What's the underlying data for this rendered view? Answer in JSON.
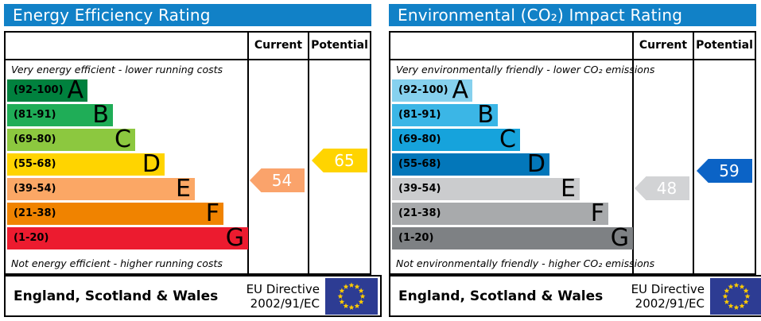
{
  "colors": {
    "header_bg": "#1181c7",
    "flag_blue": "#2d3c93",
    "flag_star": "#ffcc00"
  },
  "chart_data": [
    {
      "type": "bar",
      "title": "Energy Efficiency Rating",
      "columns": {
        "current": "Current",
        "potential": "Potential"
      },
      "top_note": "Very energy efficient - lower running costs",
      "bottom_note": "Not energy efficient - higher running costs",
      "bands": [
        {
          "letter": "A",
          "range": "(92-100)",
          "color": "#00813e"
        },
        {
          "letter": "B",
          "range": "(81-91)",
          "color": "#1fad57"
        },
        {
          "letter": "C",
          "range": "(69-80)",
          "color": "#8cc83f"
        },
        {
          "letter": "D",
          "range": "(55-68)",
          "color": "#ffd400"
        },
        {
          "letter": "E",
          "range": "(39-54)",
          "color": "#fba765"
        },
        {
          "letter": "F",
          "range": "(21-38)",
          "color": "#f08300"
        },
        {
          "letter": "G",
          "range": "(1-20)",
          "color": "#ec1b2f"
        }
      ],
      "current": {
        "value": 54,
        "band": "E",
        "color": "#faa36b"
      },
      "potential": {
        "value": 65,
        "band": "D",
        "color": "#ffd400"
      },
      "footer": {
        "region": "England, Scotland & Wales",
        "directive": [
          "EU Directive",
          "2002/91/EC"
        ]
      }
    },
    {
      "type": "bar",
      "title": "Environmental (CO₂) Impact Rating",
      "columns": {
        "current": "Current",
        "potential": "Potential"
      },
      "top_note": "Very environmentally friendly - lower CO₂ emissions",
      "bottom_note": "Not environmentally friendly - higher CO₂ emissions",
      "bands": [
        {
          "letter": "A",
          "range": "(92-100)",
          "color": "#86d1ee"
        },
        {
          "letter": "B",
          "range": "(81-91)",
          "color": "#3bb6e6"
        },
        {
          "letter": "C",
          "range": "(69-80)",
          "color": "#16a3dc"
        },
        {
          "letter": "D",
          "range": "(55-68)",
          "color": "#0377ba"
        },
        {
          "letter": "E",
          "range": "(39-54)",
          "color": "#cbccce"
        },
        {
          "letter": "F",
          "range": "(21-38)",
          "color": "#a8aaac"
        },
        {
          "letter": "G",
          "range": "(1-20)",
          "color": "#7e8184"
        }
      ],
      "current": {
        "value": 48,
        "band": "E",
        "color": "#d2d3d5"
      },
      "potential": {
        "value": 59,
        "band": "D",
        "color": "#0b63c6"
      },
      "footer": {
        "region": "England, Scotland & Wales",
        "directive": [
          "EU Directive",
          "2002/91/EC"
        ]
      }
    }
  ]
}
